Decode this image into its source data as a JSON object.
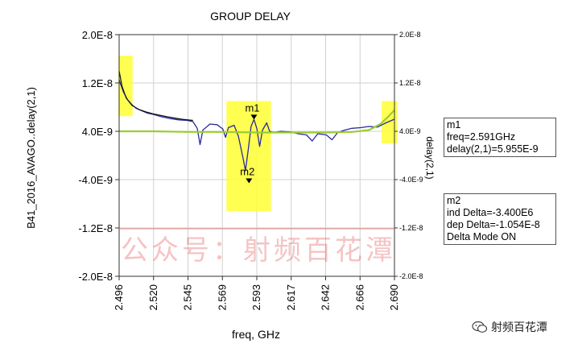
{
  "chart_data": {
    "type": "line",
    "title": "GROUP DELAY",
    "xlabel": "freq, GHz",
    "ylabel_left": "B41_2016_AVAGO..delay(2,1)",
    "ylabel_right": "delay(2,1)",
    "xlim": [
      2.496,
      2.69
    ],
    "ylim": [
      -2e-08,
      2e-08
    ],
    "x_ticks": [
      "2.496",
      "2.520",
      "2.545",
      "2.569",
      "2.593",
      "2.617",
      "2.642",
      "2.666",
      "2.690"
    ],
    "y_ticks_left": [
      "2.0E-8",
      "1.2E-8",
      "4.0E-9",
      "-4.0E-9",
      "-1.2E-8",
      "-2.0E-8"
    ],
    "y_ticks_right": [
      "2.0E-8",
      "1.2E-8",
      "4.0E-9",
      "-4.0E-9",
      "-1.2E-8",
      "-2.0E-8"
    ],
    "grid": true,
    "series": [
      {
        "color": "#2a2aa0",
        "points": [
          [
            2.496,
            1.25e-08
          ],
          [
            2.499,
            1.05e-08
          ],
          [
            2.502,
            9.2e-09
          ],
          [
            2.505,
            8.4e-09
          ],
          [
            2.508,
            7.8e-09
          ],
          [
            2.512,
            7.4e-09
          ],
          [
            2.516,
            7e-09
          ],
          [
            2.52,
            6.8e-09
          ],
          [
            2.526,
            6.4e-09
          ],
          [
            2.532,
            6.1e-09
          ],
          [
            2.538,
            5.9e-09
          ],
          [
            2.544,
            5.8e-09
          ],
          [
            2.548,
            5.6e-09
          ],
          [
            2.551,
            4.5e-09
          ],
          [
            2.553,
            1.8e-09
          ],
          [
            2.555,
            4.2e-09
          ],
          [
            2.56,
            5.2e-09
          ],
          [
            2.565,
            5.1e-09
          ],
          [
            2.569,
            4.4e-09
          ],
          [
            2.571,
            3e-09
          ],
          [
            2.573,
            4.6e-09
          ],
          [
            2.577,
            5e-09
          ],
          [
            2.58,
            3.2e-09
          ],
          [
            2.583,
            -1e-10
          ],
          [
            2.585,
            -2.5e-09
          ],
          [
            2.587,
            1e-09
          ],
          [
            2.589,
            4.8e-09
          ],
          [
            2.591,
            5.955e-09
          ],
          [
            2.593,
            4.5e-09
          ],
          [
            2.595,
            1.5e-09
          ],
          [
            2.597,
            4.2e-09
          ],
          [
            2.6,
            5.4e-09
          ],
          [
            2.602,
            4e-09
          ],
          [
            2.605,
            3.8e-09
          ],
          [
            2.61,
            4e-09
          ],
          [
            2.617,
            3.9e-09
          ],
          [
            2.622,
            3.6e-09
          ],
          [
            2.628,
            3.4e-09
          ],
          [
            2.632,
            2.4e-09
          ],
          [
            2.636,
            3.6e-09
          ],
          [
            2.642,
            3.4e-09
          ],
          [
            2.646,
            2.6e-09
          ],
          [
            2.65,
            3.8e-09
          ],
          [
            2.655,
            4.2e-09
          ],
          [
            2.66,
            4.5e-09
          ],
          [
            2.666,
            4.6e-09
          ],
          [
            2.672,
            4.8e-09
          ],
          [
            2.678,
            4.7e-09
          ],
          [
            2.684,
            5.4e-09
          ],
          [
            2.69,
            6e-09
          ]
        ]
      },
      {
        "color": "#111111",
        "points": [
          [
            2.496,
            1.4e-08
          ],
          [
            2.498,
            1.15e-08
          ],
          [
            2.501,
            9.5e-09
          ],
          [
            2.505,
            8.3e-09
          ],
          [
            2.51,
            7.6e-09
          ],
          [
            2.515,
            7.2e-09
          ],
          [
            2.52,
            6.9e-09
          ],
          [
            2.53,
            6.4e-09
          ],
          [
            2.54,
            6e-09
          ],
          [
            2.548,
            5.8e-09
          ]
        ]
      },
      {
        "color": "#9acd32",
        "points": [
          [
            2.496,
            4e-09
          ],
          [
            2.52,
            4e-09
          ],
          [
            2.545,
            3.9e-09
          ],
          [
            2.569,
            3.9e-09
          ],
          [
            2.593,
            3.8e-09
          ],
          [
            2.617,
            3.8e-09
          ],
          [
            2.642,
            3.8e-09
          ],
          [
            2.66,
            3.9e-09
          ],
          [
            2.672,
            4.2e-09
          ],
          [
            2.68,
            5.2e-09
          ],
          [
            2.686,
            6.5e-09
          ],
          [
            2.69,
            7.5e-09
          ]
        ]
      }
    ],
    "highlights": [
      {
        "x0": 2.4955,
        "x1": 2.5055,
        "y0": 6.5e-09,
        "y1": 1.65e-08
      },
      {
        "x0": 2.5716,
        "x1": 2.603,
        "y0": -9.2e-09,
        "y1": 9e-09
      },
      {
        "x0": 2.681,
        "x1": 2.692,
        "y0": 2e-09,
        "y1": 9e-09
      }
    ],
    "markers": [
      {
        "name": "m1",
        "x": 2.591,
        "y": 5.955e-09
      },
      {
        "name": "m2",
        "x": 2.5875,
        "y": -4.6e-09
      }
    ]
  },
  "marker_box_m1": {
    "title": "m1",
    "line1": "freq=2.591GHz",
    "line2": "delay(2,1)=5.955E-9"
  },
  "marker_box_m2": {
    "title": "m2",
    "line1": "ind Delta=-3.400E6",
    "line2": "dep Delta=-1.054E-8",
    "line3": "Delta Mode ON"
  },
  "watermark_text": "公众号：射频百花潭",
  "brand_text": "射频百花潭",
  "colors": {
    "highlight": "#ffff33",
    "left_label": "#cc2222",
    "right_label": "#3333aa",
    "grid": "#d0d0d0",
    "watermark_line": "#e88080"
  }
}
